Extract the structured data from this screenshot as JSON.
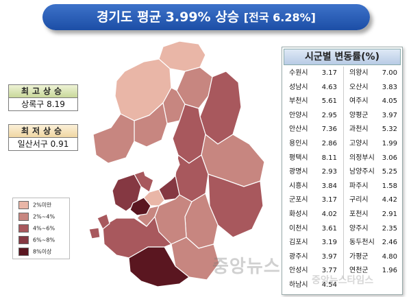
{
  "title": {
    "main": "경기도 평균 3.99% 상승",
    "sub": "[전국 6.28%]"
  },
  "highest": {
    "label": "최고상승",
    "value": "상록구 8.19"
  },
  "lowest": {
    "label": "최저상승",
    "value": "일산서구 0.91"
  },
  "legend": [
    {
      "label": "2%미만",
      "color": "#e9b6a7"
    },
    {
      "label": "2%~4%",
      "color": "#c78680"
    },
    {
      "label": "4%~6%",
      "color": "#a8585d"
    },
    {
      "label": "6%~8%",
      "color": "#853842"
    },
    {
      "label": "8%이상",
      "color": "#5a1620"
    }
  ],
  "table": {
    "title": "시군별 변동률(%)",
    "left": [
      {
        "name": "수원시",
        "value": "3.17"
      },
      {
        "name": "성남시",
        "value": "4.63"
      },
      {
        "name": "부천시",
        "value": "5.61"
      },
      {
        "name": "안양시",
        "value": "2.95"
      },
      {
        "name": "안산시",
        "value": "7.36"
      },
      {
        "name": "용인시",
        "value": "2.86"
      },
      {
        "name": "평택시",
        "value": "8.11"
      },
      {
        "name": "광명시",
        "value": "2.93"
      },
      {
        "name": "시흥시",
        "value": "3.84"
      },
      {
        "name": "군포시",
        "value": "3.17"
      },
      {
        "name": "화성시",
        "value": "4.02"
      },
      {
        "name": "이천시",
        "value": "3.61"
      },
      {
        "name": "김포시",
        "value": "3.19"
      },
      {
        "name": "광주시",
        "value": "3.97"
      },
      {
        "name": "안성시",
        "value": "3.77"
      },
      {
        "name": "하남시",
        "value": "4.54"
      }
    ],
    "right": [
      {
        "name": "의왕시",
        "value": "7.00"
      },
      {
        "name": "오산시",
        "value": "3.83"
      },
      {
        "name": "여주시",
        "value": "4.05"
      },
      {
        "name": "양평군",
        "value": "3.97"
      },
      {
        "name": "과천시",
        "value": "5.32"
      },
      {
        "name": "고양시",
        "value": "1.99"
      },
      {
        "name": "의정부시",
        "value": "3.06"
      },
      {
        "name": "남양주시",
        "value": "5.25"
      },
      {
        "name": "파주시",
        "value": "1.58"
      },
      {
        "name": "구리시",
        "value": "4.42"
      },
      {
        "name": "포천시",
        "value": "2.91"
      },
      {
        "name": "양주시",
        "value": "2.35"
      },
      {
        "name": "동두천시",
        "value": "2.46"
      },
      {
        "name": "가평군",
        "value": "4.80"
      },
      {
        "name": "연천군",
        "value": "1.96"
      }
    ]
  },
  "watermark": {
    "main": "중앙뉴스",
    "sub": "중앙뉴스타임스"
  }
}
